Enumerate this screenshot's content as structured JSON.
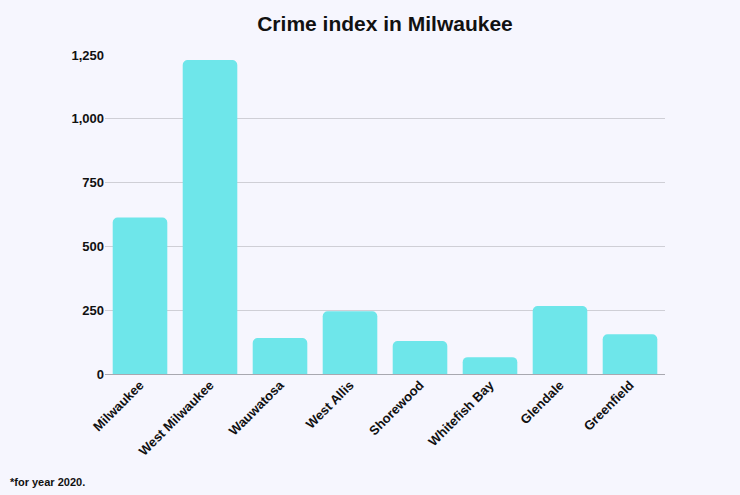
{
  "chart_data": {
    "type": "bar",
    "title": "Crime index in Milwaukee",
    "categories": [
      "Milwaukee",
      "West Milwaukee",
      "Wauwatosa",
      "West Allis",
      "Shorewood",
      "Whitefish Bay",
      "Glendale",
      "Greenfield"
    ],
    "values": [
      613,
      1230,
      141,
      246,
      129,
      66,
      266,
      156
    ],
    "color": "#6ee6ea",
    "ylim": [
      0,
      1250
    ],
    "yticks": [
      0,
      250,
      500,
      750,
      {
        "value": 1000,
        "label": "1,000"
      },
      {
        "value": 1250,
        "label": "1,250"
      }
    ],
    "grid": true,
    "annotations": [
      "*for year 2020."
    ]
  }
}
